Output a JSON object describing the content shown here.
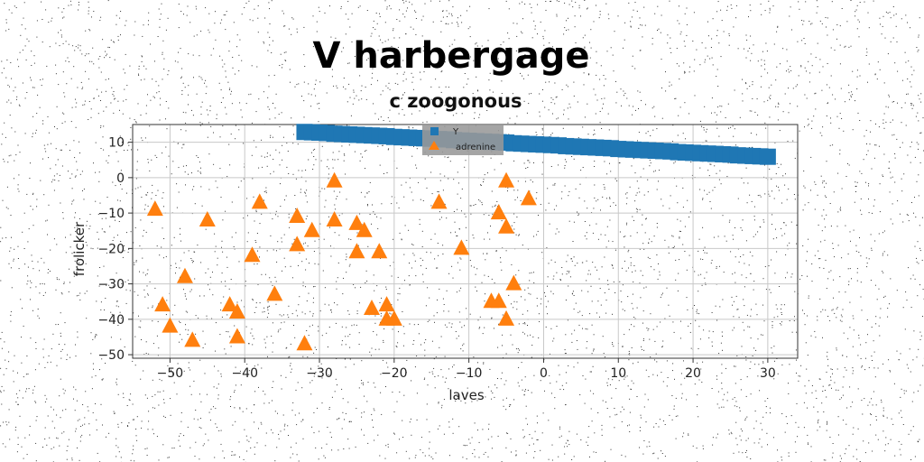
{
  "chart_data": {
    "type": "scatter",
    "title": "V harbergage",
    "subtitle": "c zoogonous",
    "xlabel": "laves",
    "ylabel": "frolicker",
    "xlim": [
      -55,
      34
    ],
    "ylim": [
      -51,
      15
    ],
    "xticks": [
      "−50",
      "−40",
      "−30",
      "−20",
      "−10",
      "0",
      "10",
      "20",
      "30"
    ],
    "xtick_values": [
      -50,
      -40,
      -30,
      -20,
      -10,
      0,
      10,
      20,
      30
    ],
    "yticks": [
      "10",
      "0",
      "−10",
      "−20",
      "−30",
      "−40",
      "−50"
    ],
    "ytick_values": [
      10,
      0,
      -10,
      -20,
      -30,
      -40,
      -50
    ],
    "grid": true,
    "legend_position": "top-center",
    "series": [
      {
        "name": "Y",
        "color": "#1f77b4",
        "marker": "square",
        "points": [
          [
            -32,
            12.9
          ],
          [
            -31,
            12.8
          ],
          [
            -30,
            12.7
          ],
          [
            -29,
            12.6
          ],
          [
            -28,
            12.4
          ],
          [
            -27,
            12.3
          ],
          [
            -26,
            12.2
          ],
          [
            -25,
            12.1
          ],
          [
            -24,
            12.0
          ],
          [
            -23,
            11.9
          ],
          [
            -22,
            11.8
          ],
          [
            -21,
            11.7
          ],
          [
            -20,
            11.5
          ],
          [
            -19,
            11.4
          ],
          [
            -18,
            11.3
          ],
          [
            -17,
            11.2
          ],
          [
            -16,
            11.1
          ],
          [
            -15,
            11.0
          ],
          [
            -14,
            10.9
          ],
          [
            -13,
            10.8
          ],
          [
            -12,
            10.6
          ],
          [
            -11,
            10.5
          ],
          [
            -10,
            10.4
          ],
          [
            -9,
            10.3
          ],
          [
            -8,
            10.2
          ],
          [
            -7,
            10.1
          ],
          [
            -6,
            10.0
          ],
          [
            -5,
            9.9
          ],
          [
            -4,
            9.7
          ],
          [
            -3,
            9.6
          ],
          [
            -2,
            9.5
          ],
          [
            -1,
            9.4
          ],
          [
            0,
            9.3
          ],
          [
            1,
            9.2
          ],
          [
            2,
            9.1
          ],
          [
            3,
            8.9
          ],
          [
            4,
            8.8
          ],
          [
            5,
            8.7
          ],
          [
            6,
            8.6
          ],
          [
            7,
            8.5
          ],
          [
            8,
            8.4
          ],
          [
            9,
            8.3
          ],
          [
            10,
            8.1
          ],
          [
            11,
            8.0
          ],
          [
            12,
            7.9
          ],
          [
            13,
            7.8
          ],
          [
            14,
            7.7
          ],
          [
            15,
            7.6
          ],
          [
            16,
            7.5
          ],
          [
            17,
            7.4
          ],
          [
            18,
            7.2
          ],
          [
            19,
            7.1
          ],
          [
            20,
            7.0
          ],
          [
            21,
            6.9
          ],
          [
            22,
            6.8
          ],
          [
            23,
            6.7
          ],
          [
            24,
            6.6
          ],
          [
            25,
            6.5
          ],
          [
            26,
            6.3
          ],
          [
            27,
            6.2
          ],
          [
            28,
            6.1
          ],
          [
            29,
            6.0
          ],
          [
            30,
            5.9
          ]
        ]
      },
      {
        "name": "adrenine",
        "color": "#ff7f0e",
        "marker": "triangle",
        "points": [
          [
            -52,
            -9
          ],
          [
            -51,
            -36
          ],
          [
            -50,
            -42
          ],
          [
            -48,
            -28
          ],
          [
            -47,
            -46
          ],
          [
            -45,
            -12
          ],
          [
            -42,
            -36
          ],
          [
            -41,
            -38
          ],
          [
            -41,
            -45
          ],
          [
            -39,
            -22
          ],
          [
            -38,
            -7
          ],
          [
            -36,
            -33
          ],
          [
            -33,
            -11
          ],
          [
            -33,
            -19
          ],
          [
            -32,
            -47
          ],
          [
            -31,
            -15
          ],
          [
            -28,
            -1
          ],
          [
            -28,
            -12
          ],
          [
            -25,
            -13
          ],
          [
            -25,
            -21
          ],
          [
            -24,
            -15
          ],
          [
            -23,
            -37
          ],
          [
            -22,
            -21
          ],
          [
            -21,
            -36
          ],
          [
            -21,
            -40
          ],
          [
            -20,
            -40
          ],
          [
            -14,
            -7
          ],
          [
            -11,
            -20
          ],
          [
            -7,
            -35
          ],
          [
            -6,
            -10
          ],
          [
            -6,
            -35
          ],
          [
            -5,
            -1
          ],
          [
            -5,
            -14
          ],
          [
            -5,
            -40
          ],
          [
            -4,
            -30
          ],
          [
            -2,
            -6
          ]
        ]
      }
    ]
  }
}
